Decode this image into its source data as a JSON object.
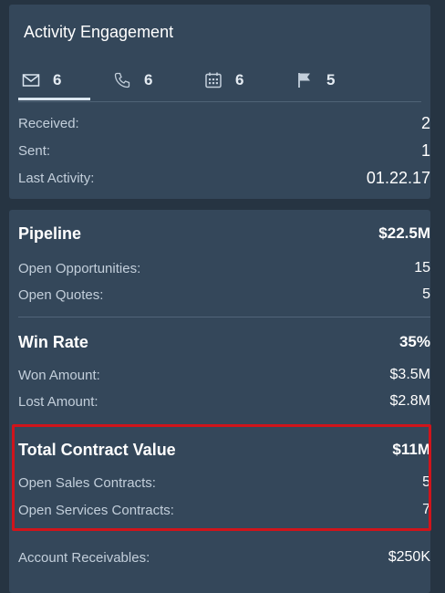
{
  "activity": {
    "title": "Activity Engagement",
    "tabs": [
      {
        "icon": "mail-icon",
        "count": "6",
        "selected": true
      },
      {
        "icon": "phone-icon",
        "count": "6",
        "selected": false
      },
      {
        "icon": "calendar-icon",
        "count": "6",
        "selected": false
      },
      {
        "icon": "flag-icon",
        "count": "5",
        "selected": false
      }
    ],
    "rows": [
      {
        "label": "Received:",
        "value": "2"
      },
      {
        "label": "Sent:",
        "value": "1"
      },
      {
        "label": "Last Activity:",
        "value": "01.22.17"
      }
    ]
  },
  "pipeline": {
    "label": "Pipeline",
    "value": "$22.5M",
    "rows": [
      {
        "label": "Open Opportunities:",
        "value": "15"
      },
      {
        "label": "Open Quotes:",
        "value": "5"
      }
    ]
  },
  "win_rate": {
    "label": "Win Rate",
    "value": "35%",
    "rows": [
      {
        "label": "Won Amount:",
        "value": "$3.5M"
      },
      {
        "label": "Lost Amount:",
        "value": "$2.8M"
      }
    ]
  },
  "contract": {
    "label": "Total Contract Value",
    "value": "$11M",
    "rows": [
      {
        "label": "Open Sales Contracts:",
        "value": "5"
      },
      {
        "label": "Open Services Contracts:",
        "value": "7"
      }
    ]
  },
  "receivables": {
    "label": "Account Receivables:",
    "value": "$250K"
  },
  "colors": {
    "background": "#263442",
    "card": "#34475a",
    "highlight": "#d0141b"
  }
}
